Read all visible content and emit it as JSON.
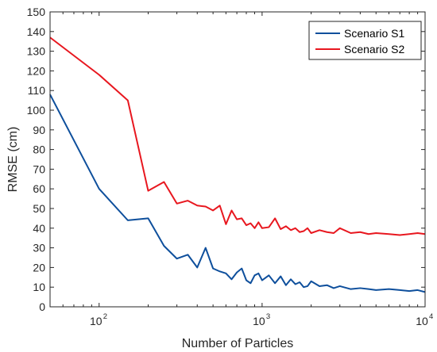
{
  "chart_data": {
    "type": "line",
    "xlabel": "Number of Particles",
    "ylabel": "RMSE (cm)",
    "xscale": "log",
    "xlim": [
      50,
      10000
    ],
    "ylim": [
      0,
      150
    ],
    "xticks": [
      {
        "value": 100,
        "base": "10",
        "exp": "2"
      },
      {
        "value": 1000,
        "base": "10",
        "exp": "3"
      },
      {
        "value": 10000,
        "base": "10",
        "exp": "4"
      }
    ],
    "yticks": [
      0,
      10,
      20,
      30,
      40,
      50,
      60,
      70,
      80,
      90,
      100,
      110,
      120,
      130,
      140,
      150
    ],
    "legend_position": "top-right",
    "series": [
      {
        "name": "Scenario S1",
        "color": "#0e4f9c",
        "x": [
          50,
          100,
          150,
          200,
          250,
          300,
          350,
          400,
          450,
          500,
          550,
          600,
          650,
          700,
          750,
          800,
          850,
          900,
          950,
          1000,
          1100,
          1200,
          1300,
          1400,
          1500,
          1600,
          1700,
          1800,
          1900,
          2000,
          2250,
          2500,
          2750,
          3000,
          3500,
          4000,
          4500,
          5000,
          6000,
          7000,
          8000,
          9000,
          10000
        ],
        "y": [
          108,
          60,
          44,
          45,
          31,
          24.5,
          26.5,
          20,
          30,
          19.5,
          18,
          17,
          14,
          17.5,
          19.5,
          13.5,
          12,
          16,
          17,
          13.5,
          16,
          12,
          15.5,
          11,
          14,
          11.5,
          12.5,
          10,
          10.5,
          13,
          10.5,
          11,
          9.5,
          10.5,
          9,
          9.5,
          9,
          8.5,
          9,
          8.5,
          8,
          8.5,
          7.5
        ]
      },
      {
        "name": "Scenario S2",
        "color": "#e8171f",
        "x": [
          50,
          100,
          150,
          200,
          250,
          300,
          350,
          400,
          450,
          500,
          550,
          600,
          650,
          700,
          750,
          800,
          850,
          900,
          950,
          1000,
          1100,
          1200,
          1300,
          1400,
          1500,
          1600,
          1700,
          1800,
          1900,
          2000,
          2250,
          2500,
          2750,
          3000,
          3500,
          4000,
          4500,
          5000,
          6000,
          7000,
          8000,
          9000,
          10000
        ],
        "y": [
          137,
          118,
          105,
          59,
          63.5,
          52.5,
          54,
          51.5,
          51,
          49,
          51.5,
          42,
          49,
          44.5,
          45,
          41.5,
          42.5,
          40,
          43,
          40,
          40.5,
          45,
          39.5,
          41,
          39,
          40,
          38,
          38.5,
          40,
          37.5,
          39,
          38,
          37.5,
          40,
          37.5,
          38,
          37,
          37.5,
          37,
          36.5,
          37,
          37.5,
          37
        ]
      }
    ]
  }
}
